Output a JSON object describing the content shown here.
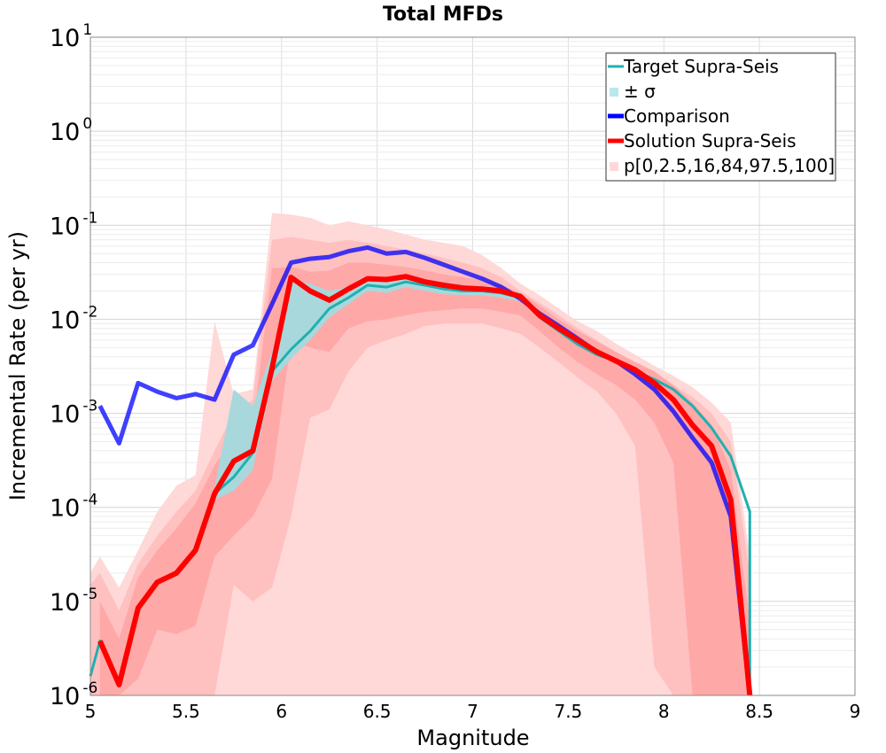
{
  "chart_data": {
    "type": "line",
    "title": "Total MFDs",
    "xlabel": "Magnitude",
    "ylabel": "Incremental Rate (per yr)",
    "xlim": [
      5,
      9
    ],
    "ylim": [
      1e-06,
      10
    ],
    "yscale": "log",
    "xticks": [
      "5",
      "5.5",
      "6",
      "6.5",
      "7",
      "7.5",
      "8",
      "8.5",
      "9"
    ],
    "yticks": [
      {
        "base": "10",
        "exp": "-6"
      },
      {
        "base": "10",
        "exp": "-5"
      },
      {
        "base": "10",
        "exp": "-4"
      },
      {
        "base": "10",
        "exp": "-3"
      },
      {
        "base": "10",
        "exp": "-2"
      },
      {
        "base": "10",
        "exp": "-1"
      },
      {
        "base": "10",
        "exp": "0"
      },
      {
        "base": "10",
        "exp": "1"
      }
    ],
    "grid": true,
    "legend_position": "top-right",
    "legend": [
      {
        "label": "Target Supra-Seis",
        "color": "#20b0b0",
        "kind": "line"
      },
      {
        "label": "± σ",
        "color": "#b8e8ec",
        "kind": "patch"
      },
      {
        "label": "Comparison",
        "color": "#0000ff",
        "kind": "thick"
      },
      {
        "label": "Solution Supra-Seis",
        "color": "#ff0000",
        "kind": "thick"
      },
      {
        "label": "p[0,2.5,16,84,97.5,100]",
        "color": "#ffd8d8",
        "kind": "patch"
      }
    ],
    "series": [
      {
        "name": "Target Supra-Seis",
        "color": "#20b0b0",
        "x": [
          5.0,
          5.05,
          5.15,
          5.25,
          5.35,
          5.45,
          5.55,
          5.65,
          5.75,
          5.85,
          5.95,
          6.05,
          6.15,
          6.25,
          6.35,
          6.45,
          6.55,
          6.65,
          6.75,
          6.85,
          6.95,
          7.05,
          7.15,
          7.25,
          7.35,
          7.45,
          7.55,
          7.65,
          7.75,
          7.85,
          7.95,
          8.05,
          8.15,
          8.25,
          8.35,
          8.45,
          8.45
        ],
        "y": [
          1.6e-06,
          3.8e-06,
          1.3e-06,
          8.5e-06,
          1.6e-05,
          2e-05,
          3.5e-05,
          0.00014,
          0.00021,
          0.00038,
          0.0028,
          0.0048,
          0.0075,
          0.013,
          0.017,
          0.023,
          0.022,
          0.025,
          0.023,
          0.021,
          0.02,
          0.02,
          0.019,
          0.017,
          0.0105,
          0.0075,
          0.0054,
          0.0042,
          0.0036,
          0.0028,
          0.0023,
          0.0018,
          0.0012,
          0.0007,
          0.00035,
          9e-05,
          1e-06
        ]
      },
      {
        "name": "Comparison",
        "color": "#0000ff",
        "x": [
          5.05,
          5.15,
          5.25,
          5.35,
          5.45,
          5.55,
          5.65,
          5.75,
          5.85,
          5.95,
          6.05,
          6.15,
          6.25,
          6.35,
          6.45,
          6.55,
          6.65,
          6.75,
          6.85,
          6.95,
          7.05,
          7.15,
          7.25,
          7.35,
          7.45,
          7.55,
          7.65,
          7.75,
          7.85,
          7.95,
          8.05,
          8.15,
          8.25,
          8.35,
          8.45
        ],
        "y": [
          0.0012,
          0.00048,
          0.0021,
          0.0017,
          0.00145,
          0.0016,
          0.0014,
          0.0042,
          0.0053,
          0.0145,
          0.04,
          0.044,
          0.046,
          0.053,
          0.058,
          0.05,
          0.052,
          0.045,
          0.038,
          0.032,
          0.027,
          0.022,
          0.0165,
          0.0115,
          0.0085,
          0.0062,
          0.0045,
          0.0036,
          0.0026,
          0.0018,
          0.00105,
          0.00055,
          0.0003,
          8e-05,
          1e-06
        ]
      },
      {
        "name": "Solution Supra-Seis",
        "color": "#ff0000",
        "x": [
          5.05,
          5.15,
          5.25,
          5.35,
          5.45,
          5.55,
          5.65,
          5.75,
          5.85,
          5.95,
          6.05,
          6.15,
          6.25,
          6.35,
          6.45,
          6.55,
          6.65,
          6.75,
          6.85,
          6.95,
          7.05,
          7.15,
          7.25,
          7.35,
          7.45,
          7.55,
          7.65,
          7.75,
          7.85,
          7.95,
          8.05,
          8.15,
          8.25,
          8.35,
          8.45
        ],
        "y": [
          3.8e-06,
          1.3e-06,
          8.5e-06,
          1.6e-05,
          2e-05,
          3.5e-05,
          0.00014,
          0.00031,
          0.0004,
          0.003,
          0.028,
          0.02,
          0.016,
          0.021,
          0.027,
          0.0265,
          0.0285,
          0.025,
          0.023,
          0.0215,
          0.021,
          0.02,
          0.0175,
          0.011,
          0.008,
          0.006,
          0.0045,
          0.0036,
          0.0029,
          0.0021,
          0.0014,
          0.00075,
          0.00045,
          0.00012,
          1e-06
        ]
      }
    ],
    "bands": [
      {
        "name": "p[0,100]",
        "color": "#ffd8d8",
        "x": [
          5.0,
          5.05,
          5.15,
          5.25,
          5.35,
          5.45,
          5.55,
          5.65,
          5.75,
          5.85,
          5.95,
          6.05,
          6.15,
          6.25,
          6.35,
          6.45,
          6.55,
          6.65,
          6.75,
          6.85,
          6.95,
          7.05,
          7.15,
          7.25,
          7.35,
          7.45,
          7.55,
          7.65,
          7.75,
          7.85,
          7.95,
          8.05,
          8.15,
          8.25,
          8.35,
          8.45
        ],
        "lower": [
          1e-06,
          1e-06,
          1e-06,
          1e-06,
          1e-06,
          1e-06,
          1e-06,
          1e-06,
          1e-06,
          1e-06,
          1e-06,
          1e-06,
          1e-06,
          1e-06,
          1e-06,
          1e-06,
          1e-06,
          1e-06,
          1e-06,
          1e-06,
          1e-06,
          1e-06,
          1e-06,
          1e-06,
          1e-06,
          1e-06,
          1e-06,
          1e-06,
          1e-06,
          1e-06,
          1e-06,
          1e-06,
          1e-06,
          1e-06,
          1e-06,
          1e-06
        ],
        "upper": [
          2e-05,
          3e-05,
          1.4e-05,
          3.5e-05,
          9e-05,
          0.00017,
          0.00022,
          0.0095,
          0.0016,
          0.0018,
          0.135,
          0.13,
          0.12,
          0.1,
          0.11,
          0.1,
          0.09,
          0.08,
          0.07,
          0.065,
          0.06,
          0.048,
          0.035,
          0.024,
          0.018,
          0.013,
          0.0095,
          0.0075,
          0.0055,
          0.0042,
          0.0032,
          0.0025,
          0.0019,
          0.0013,
          0.0008,
          3e-05
        ]
      },
      {
        "name": "p[2.5,97.5]",
        "color": "#ffc0c0",
        "x": [
          5.0,
          5.05,
          5.15,
          5.25,
          5.35,
          5.45,
          5.55,
          5.65,
          5.75,
          5.85,
          5.95,
          6.05,
          6.15,
          6.25,
          6.35,
          6.45,
          6.55,
          6.65,
          6.75,
          6.85,
          6.95,
          7.05,
          7.15,
          7.25,
          7.35,
          7.45,
          7.55,
          7.65,
          7.75,
          7.85,
          7.95,
          8.05,
          8.15,
          8.25,
          8.35,
          8.45
        ],
        "lower": [
          1e-06,
          1e-06,
          1e-06,
          1e-06,
          1e-06,
          1e-06,
          1e-06,
          1e-06,
          1.5e-05,
          1e-05,
          1.4e-05,
          8e-05,
          0.0009,
          0.0011,
          0.0028,
          0.005,
          0.006,
          0.007,
          0.0085,
          0.009,
          0.009,
          0.009,
          0.008,
          0.007,
          0.005,
          0.0035,
          0.0024,
          0.0017,
          0.001,
          0.00045,
          2e-06,
          1e-06,
          1e-06,
          1e-06,
          1e-06,
          1e-06
        ],
        "upper": [
          1.5e-05,
          2e-05,
          8e-06,
          2.5e-05,
          5e-05,
          9e-05,
          0.00015,
          0.0004,
          0.001,
          0.0014,
          0.07,
          0.075,
          0.07,
          0.065,
          0.07,
          0.065,
          0.06,
          0.055,
          0.05,
          0.045,
          0.04,
          0.035,
          0.028,
          0.02,
          0.015,
          0.011,
          0.008,
          0.006,
          0.0045,
          0.0035,
          0.0026,
          0.002,
          0.0015,
          0.001,
          0.0005,
          2e-05
        ]
      },
      {
        "name": "p[16,84]",
        "color": "#ffa8a8",
        "x": [
          5.05,
          5.15,
          5.25,
          5.35,
          5.45,
          5.55,
          5.65,
          5.75,
          5.85,
          5.95,
          6.05,
          6.15,
          6.25,
          6.35,
          6.45,
          6.55,
          6.65,
          6.75,
          6.85,
          6.95,
          7.05,
          7.15,
          7.25,
          7.35,
          7.45,
          7.55,
          7.65,
          7.75,
          7.85,
          7.95,
          8.05,
          8.15,
          8.25,
          8.35,
          8.45
        ],
        "lower": [
          1e-06,
          1e-06,
          1.5e-06,
          5e-06,
          4.5e-06,
          5.5e-06,
          3e-05,
          5e-05,
          8e-05,
          0.0002,
          0.006,
          0.005,
          0.0045,
          0.008,
          0.0095,
          0.01,
          0.011,
          0.012,
          0.0125,
          0.013,
          0.013,
          0.012,
          0.011,
          0.0075,
          0.005,
          0.0035,
          0.0026,
          0.002,
          0.0014,
          0.0008,
          0.0003,
          1e-06,
          1e-06,
          1e-06,
          1e-06
        ],
        "upper": [
          1e-05,
          4e-06,
          1.8e-05,
          3.5e-05,
          6e-05,
          0.00011,
          0.00028,
          0.00055,
          0.0007,
          0.035,
          0.036,
          0.032,
          0.033,
          0.04,
          0.04,
          0.038,
          0.036,
          0.033,
          0.03,
          0.028,
          0.026,
          0.023,
          0.019,
          0.014,
          0.01,
          0.0075,
          0.0058,
          0.0045,
          0.0035,
          0.0028,
          0.002,
          0.0013,
          0.00075,
          0.00025,
          6e-06
        ]
      },
      {
        "name": "± σ",
        "color": "#a8d8dc",
        "x": [
          5.65,
          5.75,
          5.85,
          5.95,
          6.05,
          6.15,
          6.25,
          6.35,
          6.45,
          6.55,
          6.65,
          6.75,
          6.85,
          6.95,
          7.05,
          7.15,
          7.25
        ],
        "lower": [
          0.00012,
          0.00015,
          0.00025,
          0.0022,
          0.0038,
          0.006,
          0.0105,
          0.0145,
          0.02,
          0.019,
          0.022,
          0.02,
          0.0185,
          0.018,
          0.018,
          0.017,
          0.0155
        ],
        "upper": [
          0.00016,
          0.0018,
          0.0012,
          0.0045,
          0.026,
          0.024,
          0.02,
          0.022,
          0.027,
          0.026,
          0.029,
          0.026,
          0.024,
          0.023,
          0.0225,
          0.021,
          0.019
        ]
      }
    ]
  }
}
